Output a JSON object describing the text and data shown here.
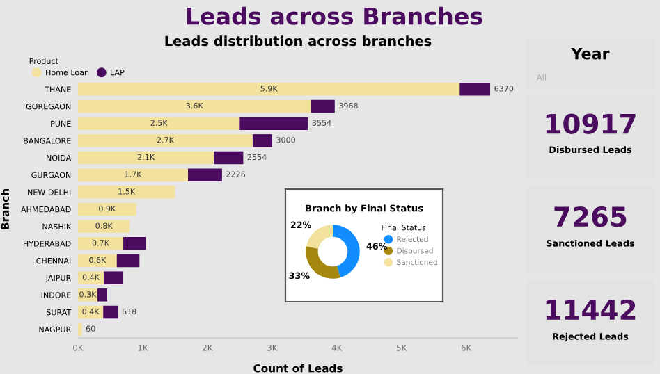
{
  "chart_data": [
    {
      "type": "other",
      "title": "Leads across Branches"
    },
    {
      "type": "bar",
      "orientation": "horizontal",
      "stacked": true,
      "title": "Leads distribution across branches",
      "xlabel": "Count of Leads",
      "ylabel": "Branch",
      "legend_title": "Product",
      "legend": "top left",
      "categories": [
        "THANE",
        "GOREGAON",
        "PUNE",
        "BANGALORE",
        "NOIDA",
        "GURGAON",
        "NEW DELHI",
        "AHMEDABAD",
        "NASHIK",
        "HYDERABAD",
        "CHENNAI",
        "JAIPUR",
        "INDORE",
        "SURAT",
        "NAGPUR"
      ],
      "series": [
        {
          "name": "Home Loan",
          "color": "#f2e29e",
          "values": [
            5900,
            3600,
            2500,
            2700,
            2100,
            1700,
            1500,
            900,
            800,
            700,
            600,
            400,
            300,
            390,
            60
          ],
          "value_labels": [
            "5.9K",
            "3.6K",
            "2.5K",
            "2.7K",
            "2.1K",
            "1.7K",
            "1.5K",
            "0.9K",
            "0.8K",
            "0.7K",
            "0.6K",
            "0.4K",
            "0.3K",
            "0.4K",
            null
          ]
        },
        {
          "name": "LAP",
          "color": "#4b0b5e",
          "values": [
            470,
            368,
            1054,
            300,
            454,
            526,
            null,
            null,
            null,
            350,
            350,
            290,
            150,
            228,
            null
          ]
        }
      ],
      "totals": [
        "6370",
        "3968",
        "3554",
        "3000",
        "2554",
        "2226",
        null,
        null,
        null,
        null,
        null,
        null,
        null,
        "618",
        "60"
      ],
      "xlim": [
        0,
        6800
      ],
      "xticks": [
        {
          "value": 0,
          "label": "0K"
        },
        {
          "value": 1000,
          "label": "1K"
        },
        {
          "value": 2000,
          "label": "2K"
        },
        {
          "value": 3000,
          "label": "3K"
        },
        {
          "value": 4000,
          "label": "4K"
        },
        {
          "value": 5000,
          "label": "5K"
        },
        {
          "value": 6000,
          "label": "6K"
        }
      ]
    },
    {
      "type": "donut",
      "title": "Branch by Final Status",
      "legend_title": "Final Status",
      "legend": "right",
      "categories": [
        "Rejected",
        "Disbursed",
        "Sanctioned"
      ],
      "values": [
        46,
        33,
        22
      ],
      "colors": [
        "#118dff",
        "#a6880f",
        "#f2e29e"
      ],
      "value_labels": [
        "46%",
        "33%",
        "22%"
      ]
    },
    {
      "type": "other",
      "title": "Year",
      "annotations": [
        "All"
      ]
    },
    {
      "type": "other",
      "title": "10917",
      "subtitle": "Disbursed Leads"
    },
    {
      "type": "other",
      "title": "7265",
      "subtitle": "Sanctioned Leads"
    },
    {
      "type": "other",
      "title": "11442",
      "subtitle": "Rejected Leads"
    }
  ]
}
